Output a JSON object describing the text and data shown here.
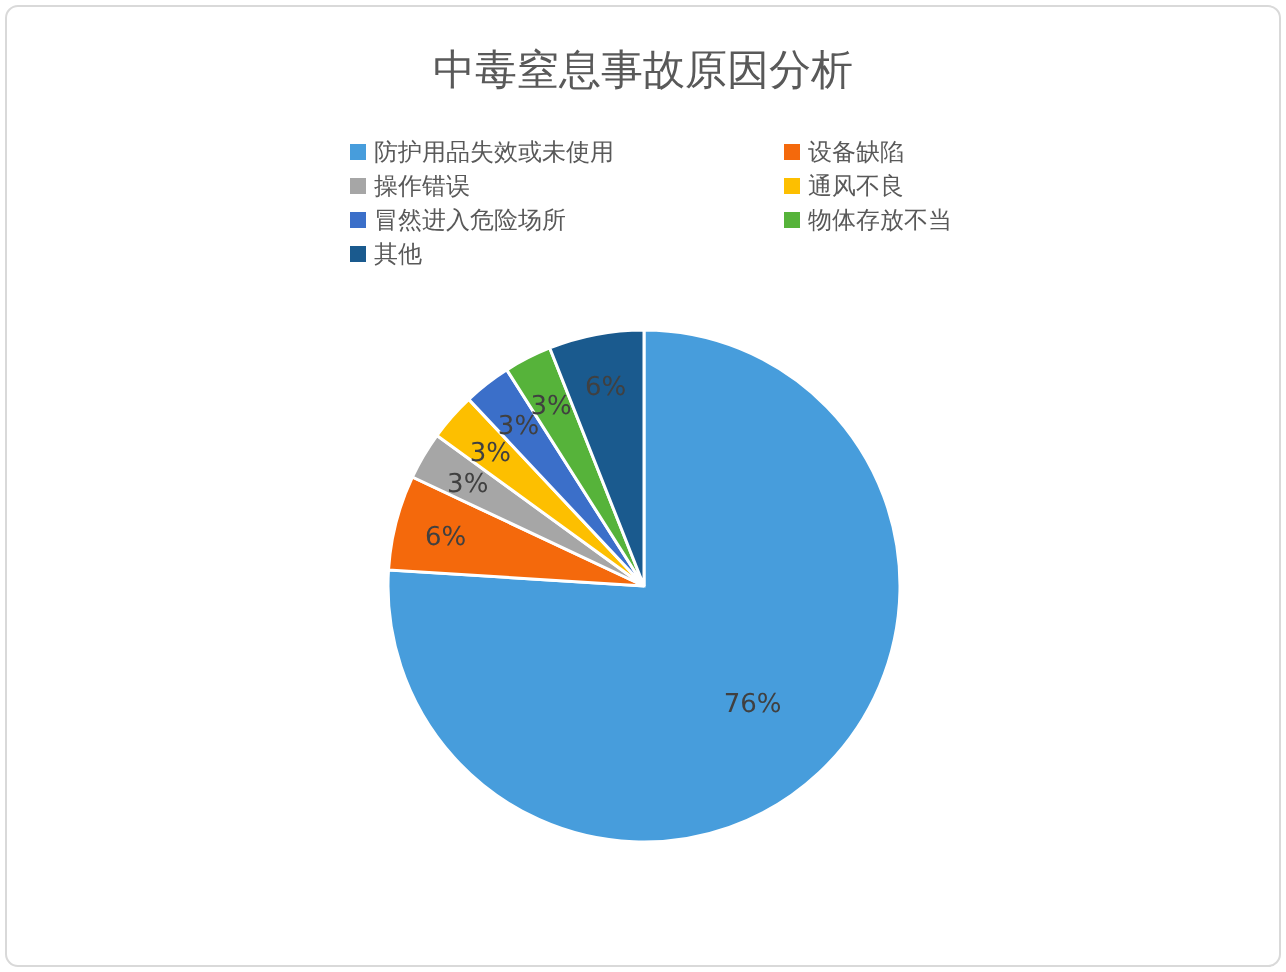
{
  "chart_data": {
    "type": "pie",
    "title": "中毒窒息事故原因分析",
    "categories": [
      "防护用品失效或未使用",
      "设备缺陷",
      "操作错误",
      "通风不良",
      "冒然进入危险场所",
      "物体存放不当",
      "其他"
    ],
    "values": [
      76,
      6,
      3,
      3,
      3,
      3,
      6
    ],
    "value_labels": [
      "76%",
      "6%",
      "3%",
      "3%",
      "3%",
      "3%",
      "6%"
    ],
    "colors": [
      "#479ddc",
      "#f4690c",
      "#a6a6a6",
      "#fdbf00",
      "#3b6fc9",
      "#56b33a",
      "#1a5a8e"
    ],
    "legend": "top"
  }
}
